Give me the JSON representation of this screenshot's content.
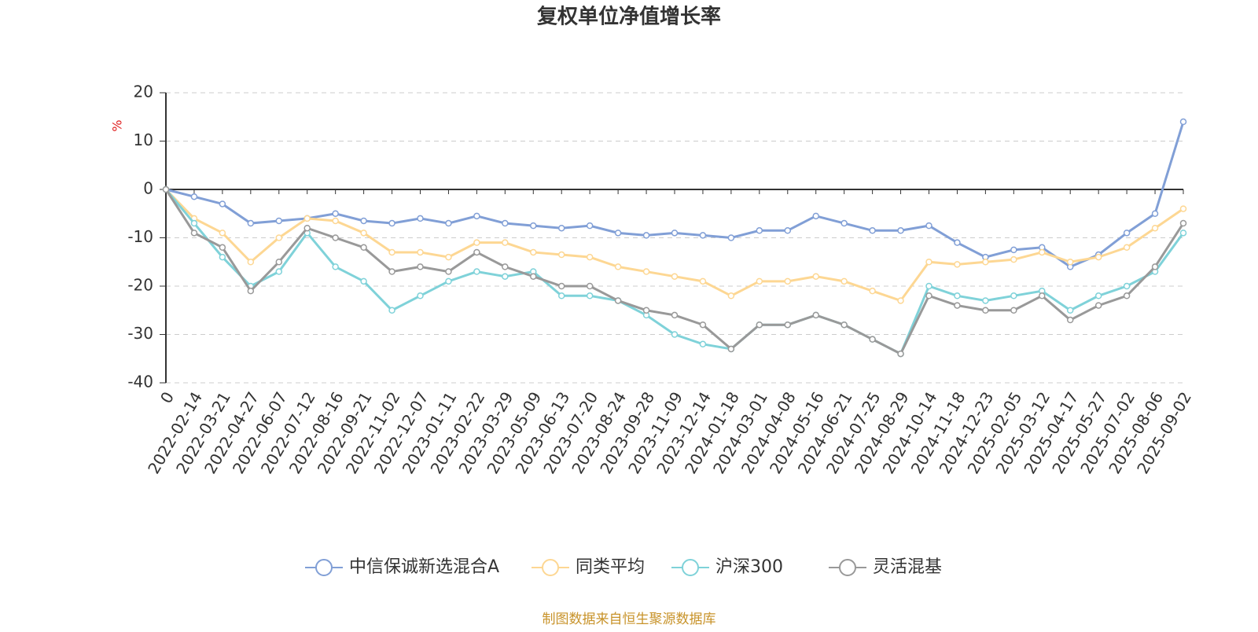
{
  "chart_data": {
    "type": "line",
    "title": "复权单位净值增长率",
    "y_label": "%",
    "source": "制图数据来自恒生聚源数据库",
    "categories": [
      "0",
      "2022-02-14",
      "2022-03-21",
      "2022-04-27",
      "2022-06-07",
      "2022-07-12",
      "2022-08-16",
      "2022-09-21",
      "2022-11-02",
      "2022-12-07",
      "2023-01-11",
      "2023-02-22",
      "2023-03-29",
      "2023-05-09",
      "2023-06-13",
      "2023-07-20",
      "2023-08-24",
      "2023-09-28",
      "2023-11-09",
      "2023-12-14",
      "2024-01-18",
      "2024-03-01",
      "2024-04-08",
      "2024-05-16",
      "2024-06-21",
      "2024-07-25",
      "2024-08-29",
      "2024-10-14",
      "2024-11-18",
      "2024-12-23",
      "2025-02-05",
      "2025-03-12",
      "2025-04-17",
      "2025-05-27",
      "2025-07-02",
      "2025-08-06",
      "2025-09-02"
    ],
    "series": [
      {
        "name": "中信保诚新选混合A",
        "color": "#819fd6",
        "values": [
          0,
          -1.5,
          -3,
          -7,
          -6.5,
          -6,
          -5,
          -6.5,
          -7,
          -6,
          -7,
          -5.5,
          -7,
          -7.5,
          -8,
          -7.5,
          -9,
          -9.5,
          -9,
          -9.5,
          -10,
          -8.5,
          -8.5,
          -5.5,
          -7,
          -8.5,
          -8.5,
          -7.5,
          -11,
          -14,
          -12.5,
          -12,
          -16,
          -13.5,
          -9,
          -5,
          14
        ]
      },
      {
        "name": "同类平均",
        "color": "#fdd793",
        "values": [
          0,
          -6,
          -9,
          -15,
          -10,
          -6,
          -6.5,
          -9,
          -13,
          -13,
          -14,
          -11,
          -11,
          -13,
          -13.5,
          -14,
          -16,
          -17,
          -18,
          -19,
          -22,
          -19,
          -19,
          -18,
          -19,
          -21,
          -23,
          -15,
          -15.5,
          -15,
          -14.5,
          -13,
          -15,
          -14,
          -12,
          -8,
          -4
        ]
      },
      {
        "name": "沪深300",
        "color": "#7fd2d9",
        "values": [
          0,
          -7,
          -14,
          -20,
          -17,
          -9,
          -16,
          -19,
          -25,
          -22,
          -19,
          -17,
          -18,
          -17,
          -22,
          -22,
          -23,
          -26,
          -30,
          -32,
          -33,
          -28,
          -28,
          -26,
          -28,
          -31,
          -34,
          -20,
          -22,
          -23,
          -22,
          -21,
          -25,
          -22,
          -20,
          -17,
          -9
        ]
      },
      {
        "name": "灵活混基",
        "color": "#999999",
        "values": [
          0,
          -9,
          -12,
          -21,
          -15,
          -8,
          -10,
          -12,
          -17,
          -16,
          -17,
          -13,
          -16,
          -18,
          -20,
          -20,
          -23,
          -25,
          -26,
          -28,
          -33,
          -28,
          -28,
          -26,
          -28,
          -31,
          -34,
          -22,
          -24,
          -25,
          -25,
          -22,
          -27,
          -24,
          -22,
          -16,
          -7
        ]
      }
    ],
    "ylim": [
      -40,
      20
    ],
    "yticks": [
      -40,
      -30,
      -20,
      -10,
      0,
      10,
      20
    ],
    "grid": true
  }
}
